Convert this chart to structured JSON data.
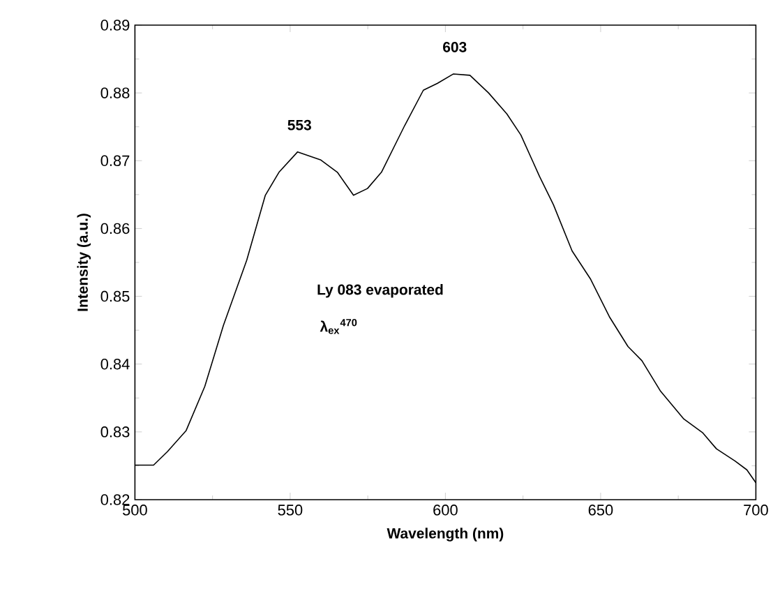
{
  "chart_data": {
    "type": "line",
    "xlabel": "Wavelength (nm)",
    "ylabel": "Intensity (a.u.)",
    "x": [
      500,
      506,
      510.5,
      516.5,
      522.5,
      528.5,
      536,
      542,
      546.4,
      552.4,
      559.9,
      565.2,
      570.4,
      574.9,
      579.4,
      586.9,
      592.9,
      597.4,
      602.6,
      607.9,
      613.9,
      619.8,
      624.3,
      630.3,
      634.8,
      640.8,
      646.8,
      652.8,
      658.8,
      663.3,
      669.3,
      676.8,
      682.8,
      687.3,
      693.3,
      697.1,
      700
    ],
    "series": [
      {
        "color": "#000000",
        "values": [
          0.8251,
          0.8251,
          0.8271,
          0.8302,
          0.8367,
          0.8457,
          0.8553,
          0.8649,
          0.8683,
          0.8713,
          0.8701,
          0.8683,
          0.8649,
          0.8659,
          0.8683,
          0.8752,
          0.8804,
          0.8814,
          0.8828,
          0.8826,
          0.88,
          0.8769,
          0.8738,
          0.8677,
          0.8635,
          0.8567,
          0.8525,
          0.847,
          0.8426,
          0.8405,
          0.836,
          0.8319,
          0.8299,
          0.8275,
          0.8257,
          0.8244,
          0.8225
        ]
      }
    ],
    "xlim": [
      500,
      700
    ],
    "xticks": [
      500,
      550,
      600,
      650,
      700
    ],
    "ylim": [
      0.82,
      0.89
    ],
    "yticks": [
      0.82,
      0.83,
      0.84,
      0.85,
      0.86,
      0.87,
      0.88,
      0.89
    ],
    "grid": false,
    "marker": "none",
    "line_style": "solid",
    "annotations": [
      {
        "text": "553",
        "x": 553,
        "y": 0.8713
      },
      {
        "text": "603",
        "x": 603,
        "y": 0.8828
      },
      "Ly 083 evaporated",
      "λ$_{ex}$$^{470}$"
    ]
  }
}
